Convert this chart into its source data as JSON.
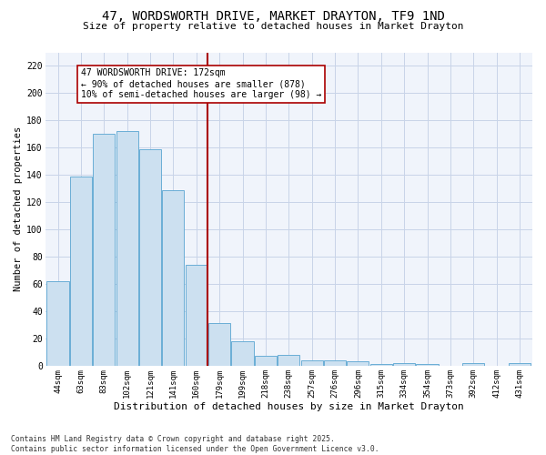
{
  "title": "47, WORDSWORTH DRIVE, MARKET DRAYTON, TF9 1ND",
  "subtitle": "Size of property relative to detached houses in Market Drayton",
  "xlabel": "Distribution of detached houses by size in Market Drayton",
  "ylabel": "Number of detached properties",
  "categories": [
    "44sqm",
    "63sqm",
    "83sqm",
    "102sqm",
    "121sqm",
    "141sqm",
    "160sqm",
    "179sqm",
    "199sqm",
    "218sqm",
    "238sqm",
    "257sqm",
    "276sqm",
    "296sqm",
    "315sqm",
    "334sqm",
    "354sqm",
    "373sqm",
    "392sqm",
    "412sqm",
    "431sqm"
  ],
  "values": [
    62,
    139,
    170,
    172,
    159,
    129,
    74,
    31,
    18,
    7,
    8,
    4,
    4,
    3,
    1,
    2,
    1,
    0,
    2,
    0,
    2
  ],
  "bar_color": "#cce0f0",
  "bar_edge_color": "#6aaed6",
  "vline_x": 6.5,
  "vline_color": "#aa0000",
  "annotation_text": "47 WORDSWORTH DRIVE: 172sqm\n← 90% of detached houses are smaller (878)\n10% of semi-detached houses are larger (98) →",
  "ylim": [
    0,
    230
  ],
  "yticks": [
    0,
    20,
    40,
    60,
    80,
    100,
    120,
    140,
    160,
    180,
    200,
    220
  ],
  "background_color": "#ffffff",
  "plot_bg_color": "#f0f4fb",
  "grid_color": "#c8d4e8",
  "footer": "Contains HM Land Registry data © Crown copyright and database right 2025.\nContains public sector information licensed under the Open Government Licence v3.0."
}
